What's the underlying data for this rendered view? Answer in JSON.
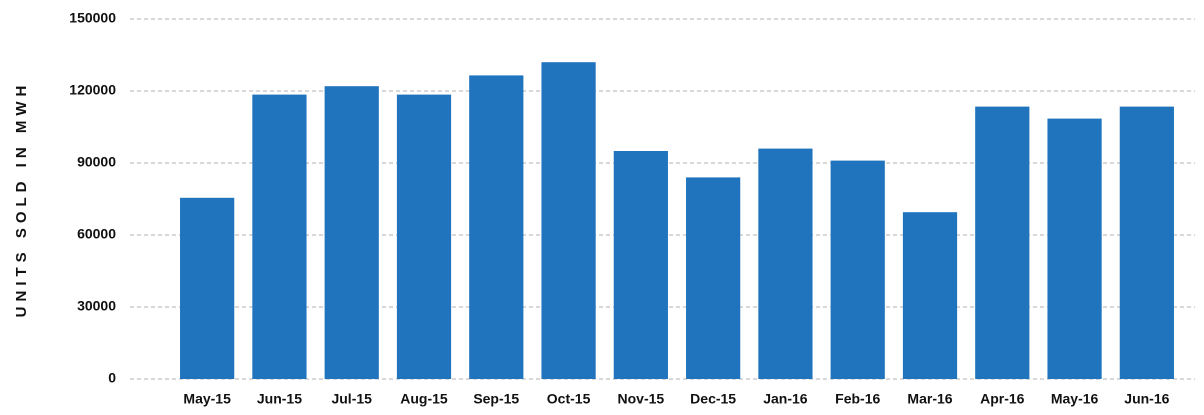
{
  "chart_data": {
    "type": "bar",
    "y_label": "UNITS SOLD IN MWH",
    "categories": [
      "May-15",
      "Jun-15",
      "Jul-15",
      "Aug-15",
      "Sep-15",
      "Oct-15",
      "Nov-15",
      "Dec-15",
      "Jan-16",
      "Feb-16",
      "Mar-16",
      "Apr-16",
      "May-16",
      "Jun-16"
    ],
    "values": [
      75500,
      118500,
      122000,
      118500,
      126500,
      132000,
      95000,
      84000,
      96000,
      91000,
      69500,
      113500,
      108500,
      113500
    ],
    "color": "#1f74bd",
    "ylim": [
      0,
      150000
    ],
    "yticks": [
      0,
      30000,
      60000,
      90000,
      120000,
      150000
    ],
    "grid": true
  }
}
